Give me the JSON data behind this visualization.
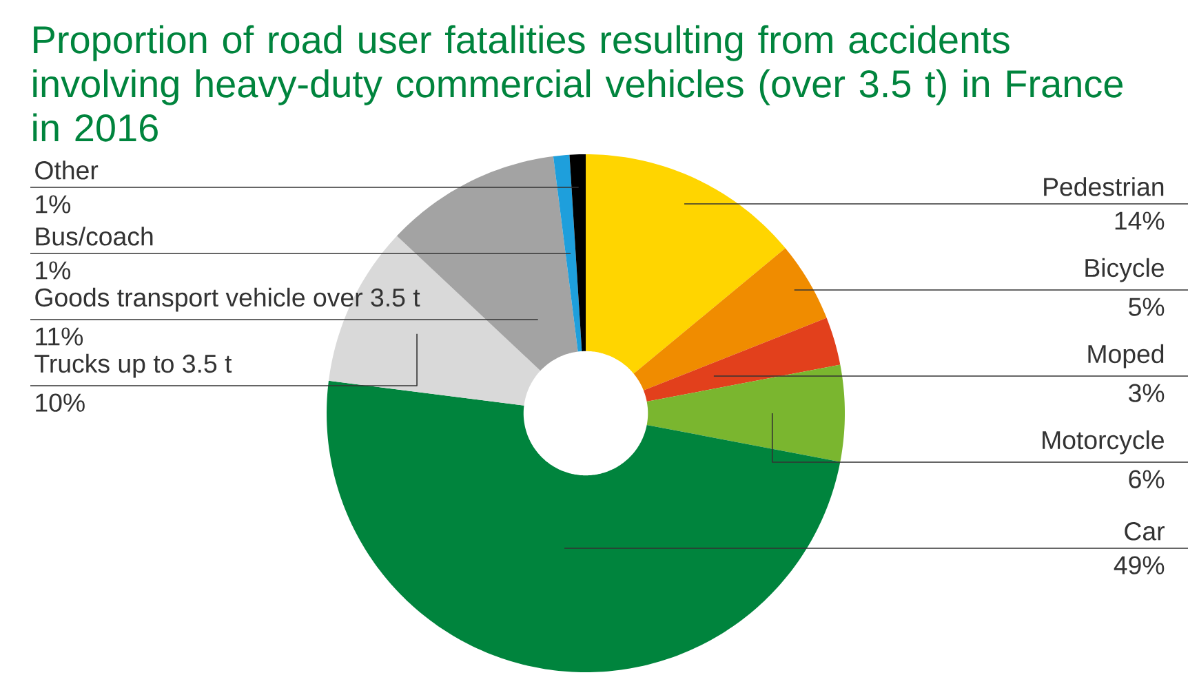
{
  "chart_data": {
    "type": "donut",
    "title": "Proportion of road user fatalities resulting from accidents involving heavy-duty commercial vehicles (over 3.5 t) in France in 2016",
    "categories": [
      "Pedestrian",
      "Bicycle",
      "Moped",
      "Motorcycle",
      "Car",
      "Trucks up to 3.5 t",
      "Goods transport vehicle over 3.5 t",
      "Bus/coach",
      "Other"
    ],
    "values": [
      14,
      5,
      3,
      6,
      49,
      10,
      11,
      1,
      1
    ],
    "value_labels": [
      "14%",
      "5%",
      "3%",
      "6%",
      "49%",
      "10%",
      "11%",
      "1%",
      "1%"
    ],
    "colors": [
      "#ffd500",
      "#f08c00",
      "#e2401c",
      "#7ab62f",
      "#00843d",
      "#d9d9d9",
      "#a3a3a3",
      "#1e9fdc",
      "#000000"
    ]
  }
}
